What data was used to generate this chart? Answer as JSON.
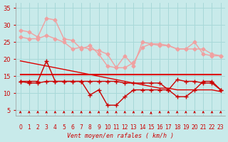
{
  "x": [
    0,
    1,
    2,
    3,
    4,
    5,
    6,
    7,
    8,
    9,
    10,
    11,
    12,
    13,
    14,
    15,
    16,
    17,
    18,
    19,
    20,
    21,
    22,
    23
  ],
  "series": [
    {
      "name": "pink_upper",
      "color": "#f0a0a0",
      "linewidth": 1.0,
      "marker": "D",
      "markersize": 2.5,
      "values": [
        28.5,
        28.0,
        26.5,
        32.0,
        31.5,
        26.0,
        25.5,
        23.0,
        24.0,
        21.5,
        18.0,
        17.5,
        21.0,
        18.0,
        25.0,
        24.5,
        24.0,
        24.0,
        23.0,
        23.0,
        25.0,
        21.5,
        21.0,
        21.0
      ]
    },
    {
      "name": "pink_lower",
      "color": "#f0a0a0",
      "linewidth": 1.0,
      "marker": "D",
      "markersize": 2.5,
      "values": [
        26.5,
        26.0,
        26.0,
        27.0,
        26.0,
        25.0,
        23.0,
        23.5,
        23.0,
        22.5,
        21.5,
        17.5,
        17.5,
        19.0,
        23.5,
        24.5,
        24.5,
        24.0,
        23.0,
        23.0,
        23.0,
        23.0,
        21.5,
        21.0
      ]
    },
    {
      "name": "red_diagonal",
      "color": "#dd0000",
      "linewidth": 1.0,
      "marker": null,
      "markersize": 0,
      "values": [
        19.5,
        19.0,
        18.5,
        18.0,
        17.5,
        17.0,
        16.5,
        16.0,
        15.5,
        15.0,
        14.5,
        14.0,
        13.5,
        13.0,
        12.5,
        12.0,
        11.5,
        11.5,
        11.0,
        11.0,
        11.0,
        11.0,
        11.0,
        10.5
      ]
    },
    {
      "name": "red_flat",
      "color": "#dd0000",
      "linewidth": 1.5,
      "marker": null,
      "markersize": 0,
      "values": [
        15.5,
        15.5,
        15.5,
        15.5,
        15.5,
        15.5,
        15.5,
        15.5,
        15.5,
        15.5,
        15.5,
        15.5,
        15.5,
        15.5,
        15.5,
        15.5,
        15.5,
        15.5,
        15.5,
        15.5,
        15.5,
        15.5,
        15.5,
        15.5
      ]
    },
    {
      "name": "red_jagged_upper",
      "color": "#cc0000",
      "linewidth": 1.0,
      "marker": "+",
      "markersize": 4,
      "values": [
        13.5,
        13.5,
        13.5,
        19.5,
        13.5,
        13.5,
        13.5,
        13.5,
        13.5,
        13.5,
        13.5,
        13.5,
        13.0,
        13.0,
        13.0,
        13.0,
        13.0,
        11.0,
        14.0,
        13.5,
        13.5,
        13.0,
        13.0,
        11.0
      ]
    },
    {
      "name": "red_jagged_lower",
      "color": "#cc0000",
      "linewidth": 1.0,
      "marker": "+",
      "markersize": 4,
      "values": [
        13.5,
        13.0,
        13.0,
        13.5,
        13.5,
        13.5,
        13.5,
        13.5,
        9.5,
        11.0,
        6.5,
        6.5,
        9.0,
        11.0,
        11.0,
        11.0,
        11.0,
        11.0,
        9.0,
        9.0,
        11.0,
        13.5,
        13.5,
        11.0
      ]
    }
  ],
  "wind_dirs_deg": [
    200,
    200,
    200,
    200,
    200,
    200,
    200,
    200,
    200,
    200,
    200,
    200,
    200,
    200,
    200,
    135,
    200,
    200,
    200,
    200,
    200,
    200,
    200,
    200
  ],
  "xlabel": "Vent moyen/en rafales ( km/h )",
  "xlim": [
    -0.5,
    23.5
  ],
  "ylim": [
    3.5,
    36.5
  ],
  "yticks": [
    5,
    10,
    15,
    20,
    25,
    30,
    35
  ],
  "xticks": [
    0,
    1,
    2,
    3,
    4,
    5,
    6,
    7,
    8,
    9,
    10,
    11,
    12,
    13,
    14,
    15,
    16,
    17,
    18,
    19,
    20,
    21,
    22,
    23
  ],
  "bg_color": "#c8eaea",
  "grid_color": "#a8d8d8",
  "arrow_color": "#cc0000"
}
